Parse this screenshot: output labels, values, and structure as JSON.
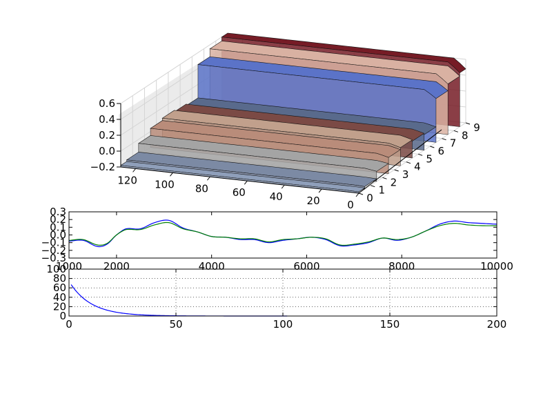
{
  "chart_data": [
    {
      "type": "surface3d",
      "x_ticks": [
        "0",
        "20",
        "40",
        "60",
        "80",
        "100",
        "120"
      ],
      "y_ticks": [
        "0",
        "1",
        "2",
        "3",
        "4",
        "5",
        "6",
        "7",
        "8",
        "9"
      ],
      "z_ticks": [
        "−0.2",
        "0.0",
        "0.2",
        "0.4",
        "0.6"
      ],
      "xlim": [
        0,
        128
      ],
      "ylim": [
        0,
        9
      ],
      "zlim": [
        -0.2,
        0.6
      ],
      "rows": [
        {
          "y": 0,
          "level": -0.18,
          "color": "#8f9fba"
        },
        {
          "y": 1,
          "level": -0.16,
          "color": "#7c8aa4"
        },
        {
          "y": 2,
          "level": -0.05,
          "color": "#a4a4a4"
        },
        {
          "y": 3,
          "level": 0.04,
          "color": "#b98c7a"
        },
        {
          "y": 4,
          "level": 0.07,
          "color": "#c1a08c"
        },
        {
          "y": 5,
          "level": 0.05,
          "color": "#7b4a45"
        },
        {
          "y": 6,
          "level": 0.03,
          "color": "#596a8c"
        },
        {
          "y": 7,
          "level": 0.45,
          "color": "#5b73c8"
        },
        {
          "y": 8,
          "level": 0.55,
          "color": "#d9b1a2"
        },
        {
          "y": 9,
          "level": 0.6,
          "color": "#761c26"
        }
      ],
      "grid": true
    },
    {
      "type": "line",
      "xlim": [
        1000,
        10000
      ],
      "ylim": [
        -0.3,
        0.3
      ],
      "x_ticks": [
        "1000",
        "2000",
        "4000",
        "6000",
        "8000",
        "10000"
      ],
      "x_tick_values": [
        1000,
        2000,
        4000,
        6000,
        8000,
        10000
      ],
      "y_ticks": [
        "0.3",
        "0.2",
        "0.1",
        "0.0",
        "−0.1",
        "−0.2",
        "−0.3"
      ],
      "y_tick_values": [
        0.3,
        0.2,
        0.1,
        0.0,
        -0.1,
        -0.2,
        -0.3
      ],
      "x": [
        1000,
        1300,
        1600,
        1800,
        2000,
        2200,
        2500,
        2800,
        3100,
        3400,
        3700,
        4000,
        4300,
        4600,
        4900,
        5200,
        5500,
        5800,
        6100,
        6400,
        6700,
        7000,
        7300,
        7600,
        7900,
        8200,
        8500,
        8800,
        9100,
        9400,
        9700,
        10000
      ],
      "series": [
        {
          "color": "#0000ff",
          "values": [
            -0.08,
            -0.07,
            -0.15,
            -0.12,
            0.0,
            0.08,
            0.08,
            0.16,
            0.19,
            0.09,
            0.04,
            -0.02,
            -0.03,
            -0.06,
            -0.06,
            -0.1,
            -0.07,
            -0.05,
            -0.03,
            -0.06,
            -0.14,
            -0.13,
            -0.1,
            -0.04,
            -0.07,
            -0.03,
            0.05,
            0.14,
            0.18,
            0.16,
            0.15,
            0.14
          ]
        },
        {
          "color": "#008000",
          "values": [
            -0.07,
            -0.06,
            -0.13,
            -0.11,
            0.0,
            0.07,
            0.07,
            0.13,
            0.16,
            0.08,
            0.04,
            -0.02,
            -0.03,
            -0.05,
            -0.05,
            -0.09,
            -0.06,
            -0.05,
            -0.03,
            -0.05,
            -0.13,
            -0.12,
            -0.09,
            -0.04,
            -0.06,
            -0.03,
            0.05,
            0.12,
            0.15,
            0.13,
            0.12,
            0.12
          ]
        }
      ],
      "grid": false
    },
    {
      "type": "line",
      "xlim": [
        0,
        200
      ],
      "ylim": [
        0,
        100
      ],
      "x_ticks": [
        "0",
        "50",
        "100",
        "150",
        "200"
      ],
      "x_tick_values": [
        0,
        50,
        100,
        150,
        200
      ],
      "y_ticks": [
        "100",
        "80",
        "60",
        "40",
        "20",
        "0"
      ],
      "y_tick_values": [
        100,
        80,
        60,
        40,
        20,
        0
      ],
      "series": [
        {
          "color": "#0000ff",
          "decay": {
            "start": 67,
            "rate": 0.1,
            "x_from": 1,
            "x_to": 102
          }
        }
      ],
      "grid": true,
      "grid_style": "dotted"
    }
  ]
}
